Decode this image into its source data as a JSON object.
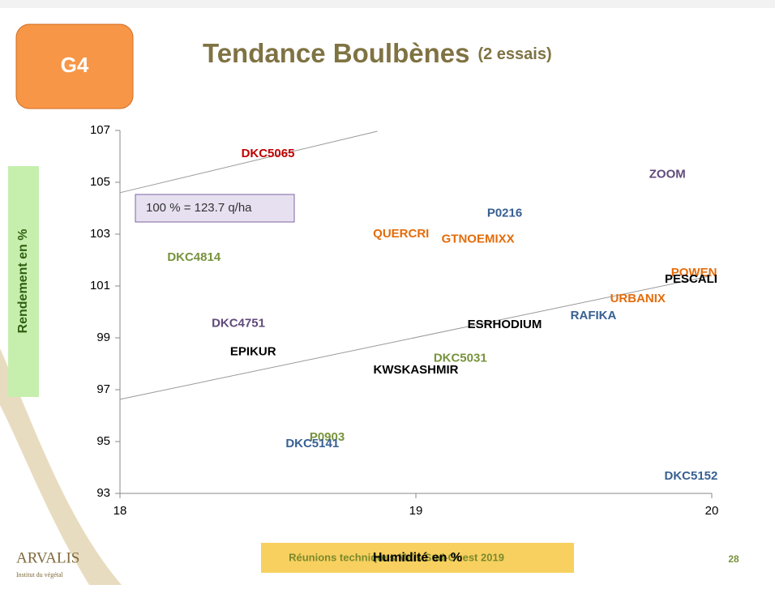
{
  "badge": "G4",
  "footer": {
    "event": "Réunions techniques Maïs Sud-Ouest 2019",
    "page": "28",
    "logo": "ARVALIS",
    "logo_sub": "Institut du végétal"
  },
  "chart_data": {
    "type": "scatter",
    "title": "Tendance Boulbènes",
    "subtitle": "(2 essais)",
    "xlabel": "Humidité en %",
    "ylabel": "Rendement en %",
    "annotation": "100 % = 123.7 q/ha",
    "xlim": [
      18,
      20
    ],
    "xticks": [
      18,
      19,
      20
    ],
    "ylim": [
      93,
      107
    ],
    "yticks": [
      93,
      95,
      97,
      99,
      101,
      103,
      105,
      107
    ],
    "labels": [
      "DKC5065",
      "ZOOM",
      "P0216",
      "QUERCRI",
      "GTNOEMIXX",
      "DKC4814",
      "POWEN",
      "PESCALI",
      "URBANIX",
      "RAFIKA",
      "ESRHODIUM",
      "DKC4751",
      "EPIKUR",
      "DKC5031",
      "KWSKASHMIR",
      "P0903",
      "DKC5141",
      "DKC5152"
    ],
    "x": [
      18.5,
      19.85,
      19.3,
      18.95,
      19.21,
      18.25,
      19.94,
      19.93,
      19.75,
      19.6,
      19.3,
      18.4,
      18.45,
      19.15,
      19.0,
      18.7,
      18.65,
      19.93
    ],
    "values": [
      106.1,
      105.3,
      103.8,
      103.0,
      102.8,
      102.1,
      101.5,
      101.25,
      100.5,
      99.85,
      99.5,
      99.55,
      98.45,
      98.2,
      97.75,
      95.15,
      94.9,
      93.65
    ],
    "colors": [
      "#c00000",
      "#604a7b",
      "#376092",
      "#e46c0a",
      "#e46c0a",
      "#77933c",
      "#e46c0a",
      "#000000",
      "#e46c0a",
      "#376092",
      "#000000",
      "#604a7b",
      "#000000",
      "#77933c",
      "#000000",
      "#77933c",
      "#376092",
      "#376092"
    ],
    "trendlines": [
      {
        "x": [
          18,
          18.87
        ],
        "values": [
          104.6,
          106.97
        ]
      },
      {
        "x": [
          18,
          20
        ],
        "values": [
          96.63,
          101.4
        ]
      }
    ]
  }
}
